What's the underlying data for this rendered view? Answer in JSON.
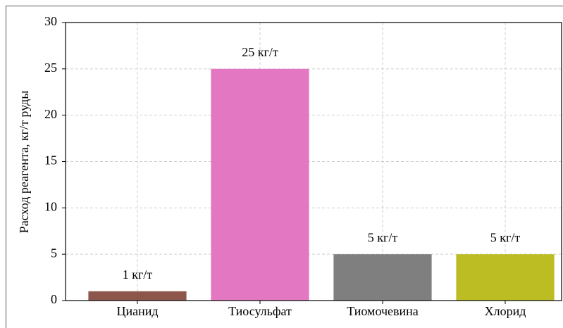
{
  "chart_data": {
    "type": "bar",
    "y_label": "Расход реагента, кг/т руды",
    "categories": [
      "Цианид",
      "Тиосульфат",
      "Тиомочевина",
      "Хлорид"
    ],
    "values": [
      1,
      25,
      5,
      5
    ],
    "value_labels": [
      "1 кг/т",
      "25 кг/т",
      "5 кг/т",
      "5 кг/т"
    ],
    "colors": [
      "#8c564b",
      "#e377c2",
      "#7f7f7f",
      "#bcbd22"
    ],
    "ylim": [
      0,
      30
    ],
    "yticks": [
      0,
      5,
      10,
      15,
      20,
      25,
      30
    ],
    "grid": true
  }
}
